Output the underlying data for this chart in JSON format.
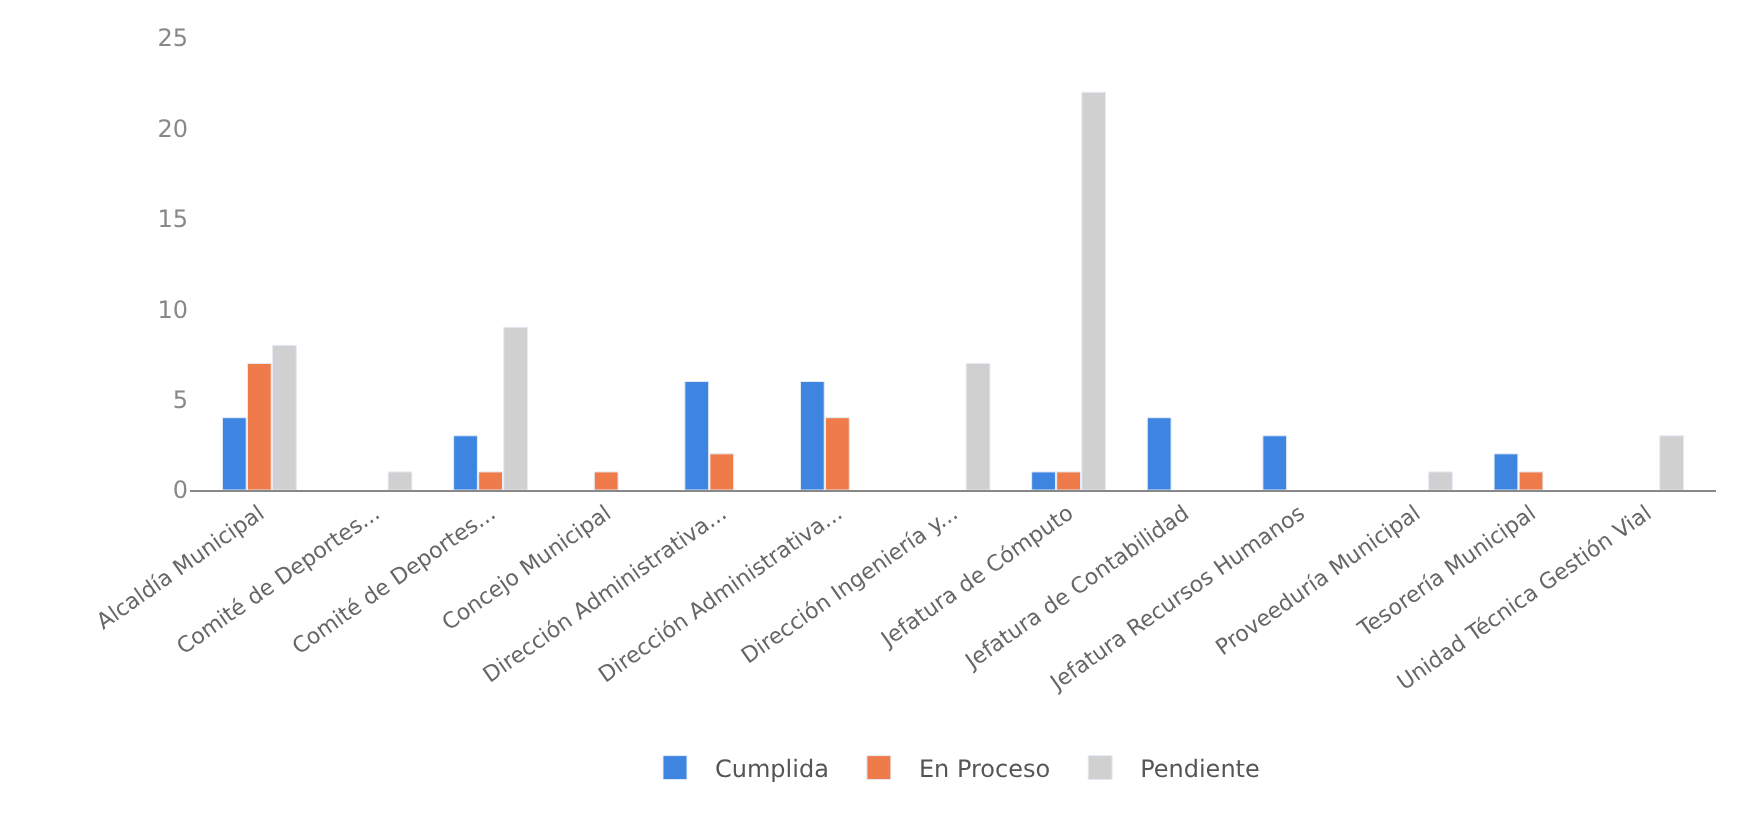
{
  "chart_data": {
    "type": "bar",
    "categories": [
      "Alcaldía Municipal",
      "Comité de Deportes...",
      "Comité de Deportes...",
      "Concejo Municipal",
      "Dirección Administrativa...",
      "Dirección Administrativa...",
      "Dirección Ingeniería y...",
      "Jefatura de Cómputo",
      "Jefatura de Contabilidad",
      "Jefatura Recursos Humanos",
      "Proveeduría Municipal",
      "Tesorería Municipal",
      "Unidad Técnica Gestión Vial"
    ],
    "series": [
      {
        "name": "Cumplida",
        "color": "#3d85e0",
        "values": [
          4,
          null,
          3,
          null,
          6,
          6,
          null,
          1,
          4,
          3,
          null,
          2,
          null
        ]
      },
      {
        "name": "En Proceso",
        "color": "#f07b4a",
        "values": [
          7,
          null,
          1,
          1,
          2,
          4,
          null,
          1,
          null,
          null,
          null,
          1,
          null
        ]
      },
      {
        "name": "Pendiente",
        "color": "#d0d0d0",
        "values": [
          8,
          1,
          9,
          null,
          null,
          null,
          7,
          22,
          null,
          null,
          1,
          null,
          3
        ]
      }
    ],
    "ylim": [
      0,
      25
    ],
    "yticks": [
      0,
      5,
      10,
      15,
      20,
      25
    ],
    "legend": "bottom"
  }
}
